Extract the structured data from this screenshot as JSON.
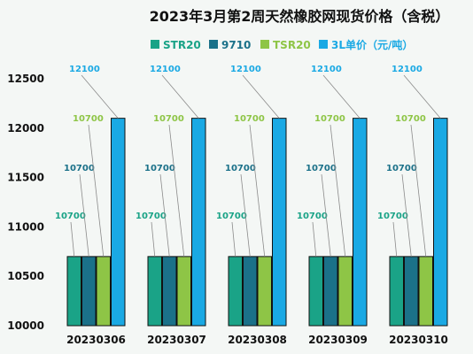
{
  "colors": {
    "STR20": "#1aa387",
    "9710": "#1b7189",
    "TSR20": "#8ec546",
    "3L": "#1aa9e4",
    "leader": "#8a8a8a",
    "border": "#111111",
    "background": "#f4f7f5"
  },
  "chart_data": {
    "type": "bar",
    "title": "2023年3月第2周天然橡胶网现货价格（含税）",
    "categories": [
      "20230306",
      "20230307",
      "20230308",
      "20230309",
      "20230310"
    ],
    "ylim": [
      10000,
      12500
    ],
    "yticks": [
      10000,
      10500,
      11000,
      11500,
      12000,
      12500
    ],
    "y_tick_labels": [
      "10000",
      "10500",
      "11000",
      "11500",
      "12000",
      "12500"
    ],
    "grid": false,
    "legend_position": "top",
    "series": [
      {
        "name": "STR20",
        "values": [
          10700,
          10700,
          10700,
          10700,
          10700
        ]
      },
      {
        "name": "9710",
        "values": [
          10700,
          10700,
          10700,
          10700,
          10700
        ]
      },
      {
        "name": "TSR20",
        "values": [
          10700,
          10700,
          10700,
          10700,
          10700
        ]
      },
      {
        "name": "3L单价（元/吨）",
        "values": [
          12100,
          12100,
          12100,
          12100,
          12100
        ]
      }
    ]
  }
}
